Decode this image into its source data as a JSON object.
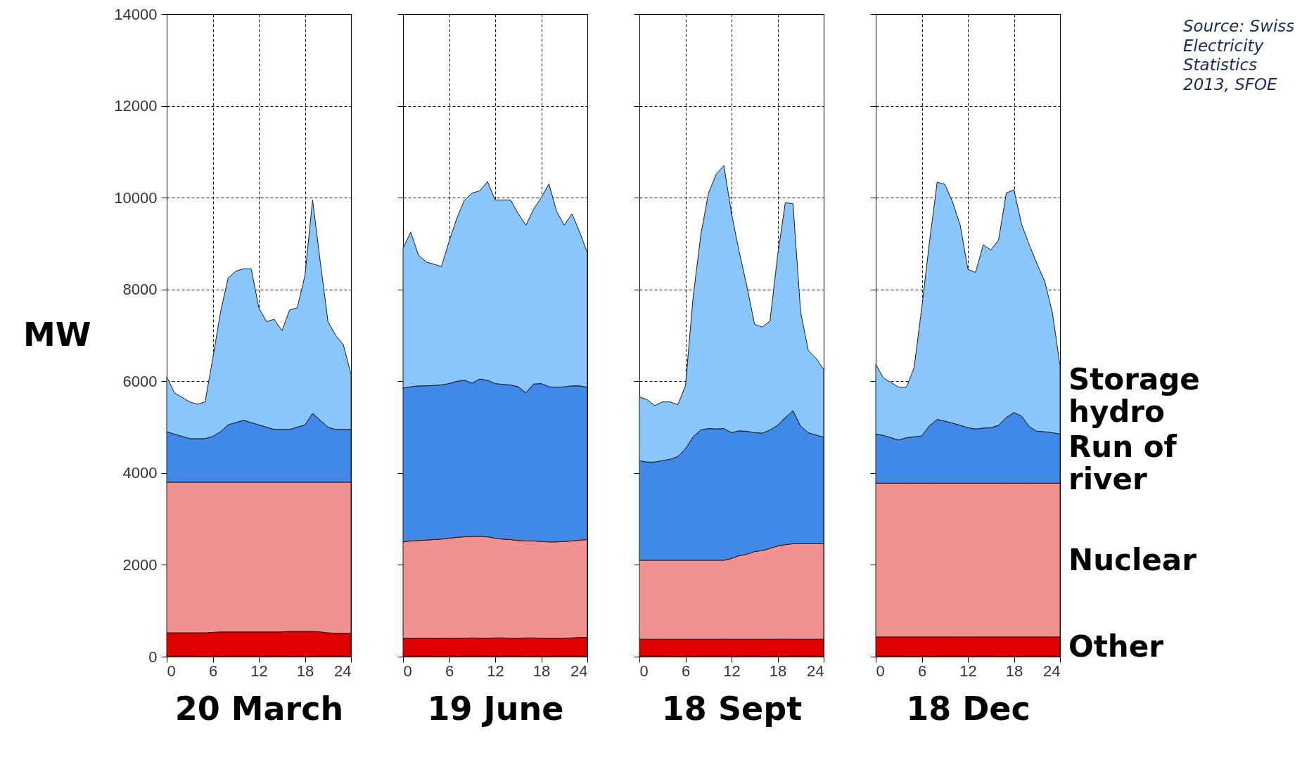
{
  "chart_data": [
    {
      "type": "area",
      "stacked": true,
      "xlabel": "20 March",
      "ylabel": "MW",
      "xlim": [
        0,
        24
      ],
      "xticks": [
        0,
        6,
        12,
        18,
        24
      ],
      "ylim": [
        0,
        14000
      ],
      "yticks": [
        0,
        2000,
        4000,
        6000,
        8000,
        10000,
        12000,
        14000
      ],
      "grid": true,
      "x": [
        0,
        1,
        2,
        3,
        4,
        5,
        6,
        7,
        8,
        9,
        10,
        11,
        12,
        13,
        14,
        15,
        16,
        17,
        18,
        19,
        20,
        21,
        22,
        23,
        24
      ],
      "series": [
        {
          "color": "#e00000",
          "values": [
            520,
            520,
            520,
            520,
            520,
            520,
            530,
            540,
            540,
            540,
            540,
            540,
            540,
            540,
            540,
            540,
            550,
            550,
            550,
            550,
            540,
            520,
            510,
            510,
            510
          ]
        },
        {
          "color": "#f29191",
          "values": [
            3280,
            3280,
            3280,
            3280,
            3280,
            3280,
            3270,
            3260,
            3260,
            3260,
            3260,
            3260,
            3260,
            3260,
            3260,
            3260,
            3250,
            3250,
            3250,
            3250,
            3260,
            3280,
            3290,
            3290,
            3290
          ]
        },
        {
          "color": "#4189e8",
          "values": [
            1100,
            1050,
            1000,
            950,
            950,
            950,
            1000,
            1100,
            1250,
            1300,
            1350,
            1300,
            1250,
            1200,
            1150,
            1150,
            1150,
            1200,
            1250,
            1500,
            1350,
            1200,
            1150,
            1150,
            1150
          ]
        },
        {
          "color": "#88c6fb",
          "values": [
            1200,
            900,
            850,
            800,
            750,
            800,
            1700,
            2600,
            3200,
            3300,
            3300,
            3350,
            2550,
            2300,
            2400,
            2150,
            2600,
            2600,
            3250,
            4650,
            3450,
            2300,
            2050,
            1850,
            1200
          ]
        }
      ]
    },
    {
      "type": "area",
      "stacked": true,
      "xlabel": "19 June",
      "xlim": [
        0,
        24
      ],
      "xticks": [
        0,
        6,
        12,
        18,
        24
      ],
      "ylim": [
        0,
        14000
      ],
      "yticks": [
        0,
        2000,
        4000,
        6000,
        8000,
        10000,
        12000,
        14000
      ],
      "grid": true,
      "tick_labels": "x",
      "x": [
        0,
        1,
        2,
        3,
        4,
        5,
        6,
        7,
        8,
        9,
        10,
        11,
        12,
        13,
        14,
        15,
        16,
        17,
        18,
        19,
        20,
        21,
        22,
        23,
        24
      ],
      "series": [
        {
          "color": "#e00000",
          "values": [
            400,
            400,
            400,
            400,
            400,
            400,
            400,
            400,
            400,
            410,
            400,
            400,
            410,
            410,
            400,
            400,
            410,
            410,
            400,
            400,
            400,
            400,
            410,
            420,
            420
          ]
        },
        {
          "color": "#f29191",
          "values": [
            2100,
            2120,
            2130,
            2140,
            2150,
            2160,
            2180,
            2200,
            2210,
            2210,
            2220,
            2210,
            2170,
            2150,
            2150,
            2130,
            2110,
            2110,
            2110,
            2100,
            2100,
            2110,
            2110,
            2120,
            2130
          ]
        },
        {
          "color": "#4189e8",
          "values": [
            3350,
            3360,
            3370,
            3360,
            3360,
            3360,
            3370,
            3400,
            3410,
            3340,
            3430,
            3410,
            3370,
            3370,
            3370,
            3350,
            3230,
            3420,
            3440,
            3380,
            3370,
            3370,
            3380,
            3360,
            3320
          ]
        },
        {
          "color": "#88c6fb",
          "values": [
            3050,
            3370,
            2850,
            2700,
            2640,
            2580,
            3100,
            3550,
            3930,
            4140,
            4100,
            4330,
            4000,
            4020,
            4030,
            3770,
            3650,
            3810,
            4050,
            4420,
            3830,
            3520,
            3750,
            3350,
            2930
          ]
        }
      ]
    },
    {
      "type": "area",
      "stacked": true,
      "xlabel": "18 Sept",
      "xlim": [
        0,
        24
      ],
      "xticks": [
        0,
        6,
        12,
        18,
        24
      ],
      "ylim": [
        0,
        14000
      ],
      "yticks": [
        0,
        2000,
        4000,
        6000,
        8000,
        10000,
        12000,
        14000
      ],
      "grid": true,
      "tick_labels": "x",
      "x": [
        0,
        1,
        2,
        3,
        4,
        5,
        6,
        7,
        8,
        9,
        10,
        11,
        12,
        13,
        14,
        15,
        16,
        17,
        18,
        19,
        20,
        21,
        22,
        23,
        24
      ],
      "series": [
        {
          "color": "#e00000",
          "values": [
            380,
            380,
            380,
            380,
            380,
            380,
            380,
            380,
            380,
            380,
            380,
            380,
            380,
            380,
            380,
            380,
            380,
            380,
            380,
            380,
            380,
            380,
            380,
            380,
            380
          ]
        },
        {
          "color": "#f29191",
          "values": [
            1720,
            1720,
            1720,
            1720,
            1720,
            1720,
            1720,
            1720,
            1720,
            1720,
            1720,
            1720,
            1760,
            1820,
            1850,
            1910,
            1930,
            1980,
            2030,
            2060,
            2080,
            2080,
            2080,
            2080,
            2080
          ]
        },
        {
          "color": "#4189e8",
          "values": [
            2170,
            2140,
            2140,
            2170,
            2200,
            2260,
            2430,
            2690,
            2840,
            2870,
            2860,
            2870,
            2740,
            2720,
            2680,
            2590,
            2560,
            2580,
            2630,
            2770,
            2900,
            2560,
            2420,
            2370,
            2320
          ]
        },
        {
          "color": "#88c6fb",
          "values": [
            1390,
            1360,
            1230,
            1280,
            1250,
            1130,
            1370,
            3050,
            4250,
            5130,
            5550,
            5730,
            4770,
            3900,
            3160,
            2360,
            2310,
            2370,
            3700,
            4680,
            4510,
            2480,
            1790,
            1670,
            1480
          ]
        }
      ]
    },
    {
      "type": "area",
      "stacked": true,
      "xlabel": "18 Dec",
      "xlim": [
        0,
        24
      ],
      "xticks": [
        0,
        6,
        12,
        18,
        24
      ],
      "ylim": [
        0,
        14000
      ],
      "yticks": [
        0,
        2000,
        4000,
        6000,
        8000,
        10000,
        12000,
        14000
      ],
      "grid": true,
      "tick_labels": "x",
      "x": [
        0,
        1,
        2,
        3,
        4,
        5,
        6,
        7,
        8,
        9,
        10,
        11,
        12,
        13,
        14,
        15,
        16,
        17,
        18,
        19,
        20,
        21,
        22,
        23,
        24
      ],
      "annotations": [
        "Source: Swiss Electricity Statistics 2013, SFOE"
      ],
      "series": [
        {
          "name": "Other",
          "color": "#e00000",
          "values": [
            430,
            430,
            430,
            430,
            430,
            430,
            430,
            430,
            430,
            430,
            430,
            430,
            430,
            430,
            430,
            430,
            430,
            430,
            430,
            430,
            430,
            430,
            430,
            430,
            430
          ]
        },
        {
          "name": "Nuclear",
          "color": "#f29191",
          "values": [
            3350,
            3350,
            3350,
            3350,
            3350,
            3350,
            3350,
            3350,
            3350,
            3350,
            3350,
            3350,
            3350,
            3350,
            3350,
            3350,
            3350,
            3350,
            3350,
            3350,
            3350,
            3350,
            3350,
            3350,
            3350
          ]
        },
        {
          "name": "Run of river",
          "color": "#4189e8",
          "values": [
            1070,
            1040,
            990,
            940,
            990,
            1010,
            1030,
            1250,
            1390,
            1350,
            1310,
            1260,
            1210,
            1180,
            1200,
            1210,
            1260,
            1430,
            1540,
            1460,
            1230,
            1130,
            1120,
            1100,
            1070
          ]
        },
        {
          "name": "Storage hydro",
          "color": "#88c6fb",
          "values": [
            1520,
            1250,
            1200,
            1150,
            1100,
            1510,
            2800,
            4010,
            5170,
            5160,
            4820,
            4360,
            3450,
            3410,
            3990,
            3870,
            4040,
            4890,
            4850,
            4180,
            3960,
            3650,
            3280,
            2620,
            1490
          ]
        }
      ]
    }
  ]
}
